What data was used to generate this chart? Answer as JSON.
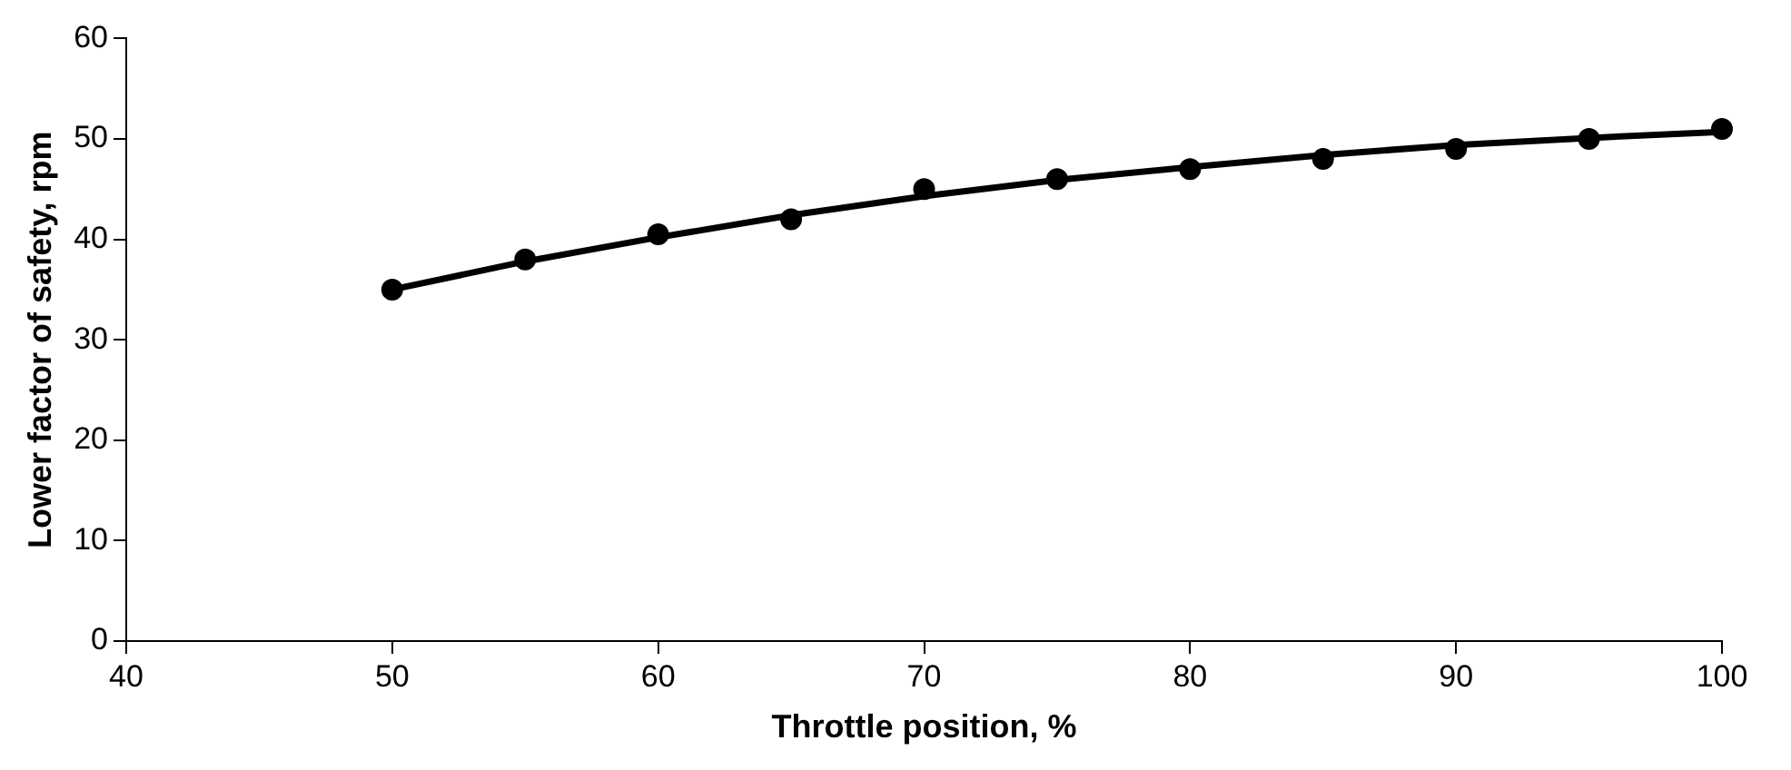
{
  "chart_data": {
    "type": "scatter",
    "xlabel": "Throttle position, %",
    "ylabel": "Lower factor of safety, rpm",
    "xlim": [
      40,
      100
    ],
    "xticks": [
      40,
      50,
      60,
      70,
      80,
      90,
      100
    ],
    "ylim": [
      0,
      60
    ],
    "yticks": [
      0,
      10,
      20,
      30,
      40,
      50,
      60
    ],
    "grid": false,
    "legend": false,
    "series": [
      {
        "color": "#000000",
        "marker": "circle",
        "x": [
          50,
          55,
          60,
          65,
          70,
          75,
          80,
          85,
          90,
          95,
          100
        ],
        "values": [
          35,
          38,
          40.5,
          42,
          45,
          46,
          47,
          48,
          49,
          50,
          51
        ]
      },
      {
        "type": "line",
        "color": "#000000",
        "marker": "none",
        "line_style": "solid",
        "x": [
          50,
          55,
          60,
          65,
          70,
          75,
          80,
          85,
          90,
          95,
          100
        ],
        "values": [
          35,
          37.8,
          40.2,
          42.4,
          44.3,
          45.9,
          47.2,
          48.4,
          49.4,
          50.1,
          50.7
        ]
      }
    ]
  }
}
